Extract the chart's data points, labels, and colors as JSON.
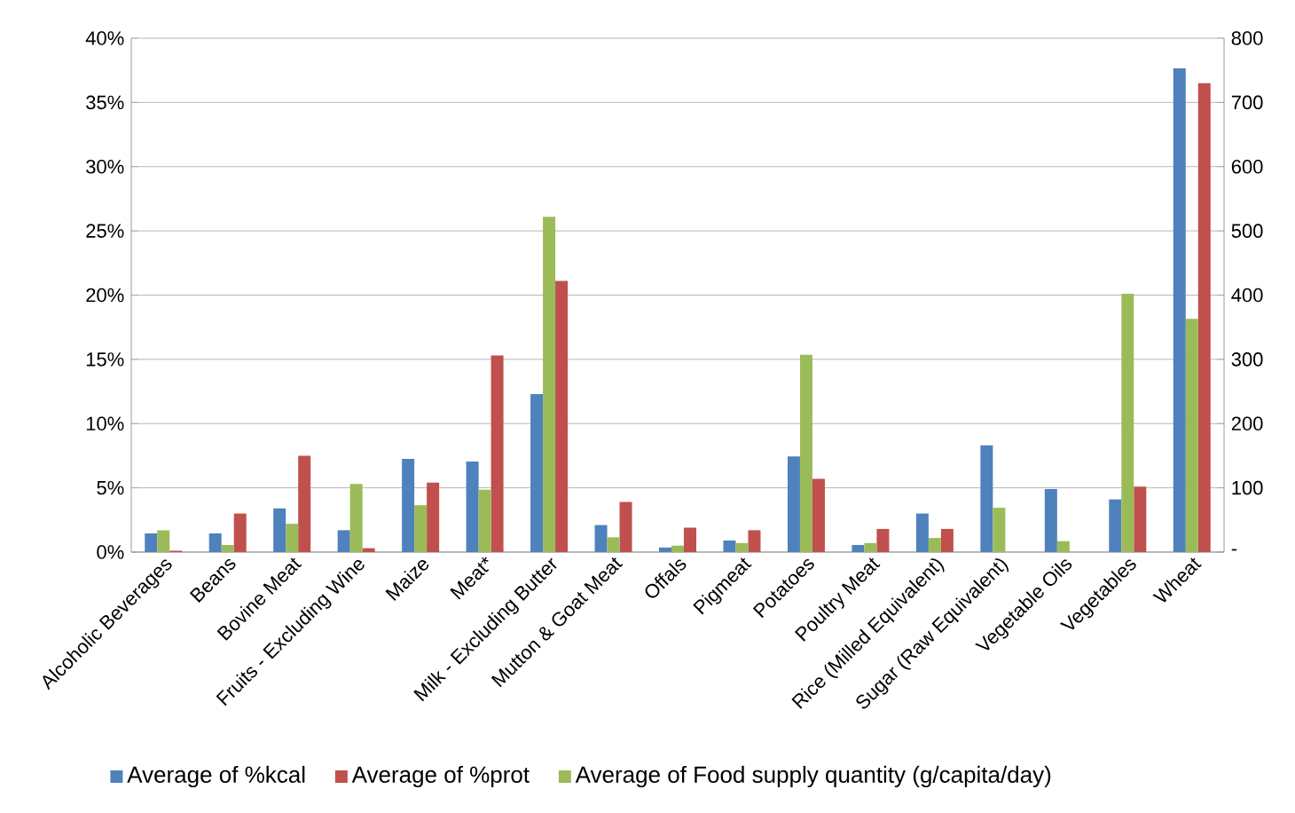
{
  "chart_data": {
    "type": "bar",
    "categories": [
      "Alcoholic Beverages",
      "Beans",
      "Bovine Meat",
      "Fruits - Excluding Wine",
      "Maize",
      "Meat*",
      "Milk - Excluding Butter",
      "Mutton & Goat Meat",
      "Offals",
      "Pigmeat",
      "Potatoes",
      "Poultry Meat",
      "Rice (Milled Equivalent)",
      "Sugar (Raw Equivalent)",
      "Vegetable Oils",
      "Vegetables",
      "Wheat"
    ],
    "series": [
      {
        "name": "Average of %kcal",
        "color": "#4f81bd",
        "values": [
          1.45,
          1.45,
          3.4,
          1.7,
          7.25,
          7.05,
          12.3,
          2.1,
          0.35,
          0.9,
          7.45,
          0.55,
          3.0,
          8.3,
          4.9,
          4.1,
          37.65
        ]
      },
      {
        "name": "Average of Food supply quantity (g/capita/day)",
        "color": "#9bbb59",
        "axis": "y2",
        "values": [
          34,
          11,
          44,
          106,
          73,
          97,
          522,
          23,
          10,
          14,
          307,
          14,
          22,
          69,
          17,
          402,
          363
        ]
      },
      {
        "name": "Average of %prot",
        "color": "#c0504d",
        "values": [
          0.1,
          3.0,
          7.5,
          0.3,
          5.4,
          15.3,
          21.1,
          3.9,
          1.9,
          1.7,
          5.7,
          1.8,
          1.8,
          null,
          null,
          5.1,
          36.5
        ]
      }
    ],
    "ylim": [
      0,
      40
    ],
    "yticks": [
      {
        "value": 0,
        "label": "0%"
      },
      {
        "value": 5,
        "label": "5%"
      },
      {
        "value": 10,
        "label": "10%"
      },
      {
        "value": 15,
        "label": "15%"
      },
      {
        "value": 20,
        "label": "20%"
      },
      {
        "value": 25,
        "label": "25%"
      },
      {
        "value": 30,
        "label": "30%"
      },
      {
        "value": 35,
        "label": "35%"
      },
      {
        "value": 40,
        "label": "40%"
      }
    ],
    "y2lim": [
      0,
      800
    ],
    "y2ticks": [
      {
        "value": 0,
        "label": "-"
      },
      100,
      200,
      300,
      400,
      500,
      600,
      700,
      800
    ],
    "grid": "y",
    "legend": "bottom"
  }
}
